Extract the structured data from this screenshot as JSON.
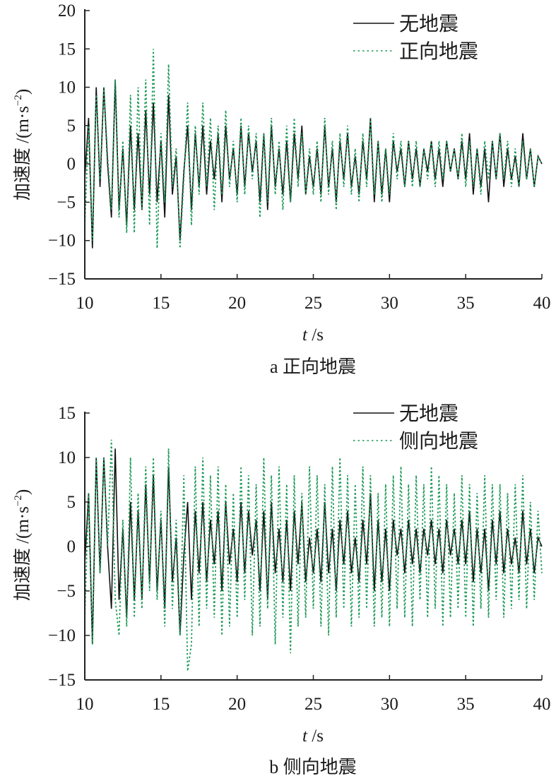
{
  "colors": {
    "none": "#111111",
    "quake": "#1b9a55",
    "axis": "#222222"
  },
  "chart_data": [
    {
      "type": "line",
      "caption": "a 正向地震",
      "xlabel_var": "t",
      "xlabel_unit": " /s",
      "ylabel_main": "加速度 /(m·s",
      "ylabel_exp": "−2",
      "ylabel_close": ")",
      "xlim": [
        10,
        40
      ],
      "ylim": [
        -15,
        20
      ],
      "xticks": [
        10,
        15,
        20,
        25,
        30,
        35,
        40
      ],
      "yticks": [
        20,
        15,
        10,
        5,
        0,
        -5,
        -10,
        -15
      ],
      "ytick_labels": [
        "20",
        "15",
        "10",
        "5",
        "0",
        "−5",
        "−10",
        "−15"
      ],
      "legend_position": "top-right",
      "x_start": 10,
      "x_step": 0.25,
      "series": [
        {
          "name": "无地震",
          "style": "solid",
          "color_key": "none",
          "values": [
            -2,
            6,
            -11,
            10,
            -3,
            10,
            0,
            -7,
            11,
            -6,
            2,
            -8,
            5,
            -6,
            4,
            -6,
            7,
            -4,
            8,
            -5,
            3,
            -7,
            9,
            -4,
            1,
            -10,
            -1,
            5,
            -6,
            4,
            -3,
            5,
            -4,
            3,
            -2,
            4,
            -5,
            5,
            -2,
            2,
            -4,
            5,
            -3,
            4,
            -1,
            3,
            -5,
            4,
            -6,
            5,
            -3,
            2,
            -4,
            3,
            -5,
            4,
            -2,
            5,
            -4,
            1,
            -3,
            2,
            -4,
            5,
            -3,
            2,
            -5,
            3,
            -2,
            4,
            -3,
            1,
            -4,
            3,
            -2,
            6,
            -5,
            3,
            -4,
            2,
            -5,
            3,
            -1,
            2,
            -3,
            3,
            -2,
            2,
            -3,
            2,
            -1,
            3,
            -2,
            2,
            -3,
            3,
            -1,
            2,
            -2,
            3,
            -2,
            4,
            -4,
            2,
            -3,
            2,
            -5,
            3,
            -2,
            4,
            -3,
            2,
            -2,
            1,
            -3,
            4,
            -2,
            2,
            -3,
            1,
            0
          ]
        },
        {
          "name": "正向地震",
          "style": "dotted",
          "color_key": "quake",
          "values": [
            -8,
            5,
            -10,
            9,
            -2,
            10,
            1,
            -6,
            11,
            -7,
            3,
            -9,
            9,
            -9,
            10,
            -6,
            11,
            -8,
            15,
            -11,
            4,
            -5,
            13,
            -3,
            2,
            -11,
            -2,
            8,
            -8,
            5,
            -4,
            8,
            -3,
            6,
            -6,
            5,
            -4,
            7,
            -3,
            3,
            -5,
            6,
            -4,
            5,
            -2,
            4,
            -7,
            4,
            -5,
            6,
            -4,
            3,
            -6,
            5,
            -5,
            6,
            -3,
            4,
            -4,
            2,
            -4,
            3,
            -5,
            6,
            -4,
            3,
            -6,
            4,
            -3,
            5,
            -4,
            2,
            -5,
            4,
            -3,
            6,
            -4,
            3,
            -5,
            2,
            -4,
            4,
            -2,
            3,
            -3,
            3,
            -3,
            3,
            -3,
            2,
            -2,
            3,
            -3,
            3,
            -2,
            3,
            -1,
            2,
            -2,
            4,
            -3,
            3,
            -3,
            2,
            -4,
            3,
            -2,
            3,
            -2,
            4,
            -2,
            3,
            -3,
            2,
            -3,
            3,
            -2,
            2,
            -3,
            1,
            0
          ]
        }
      ]
    },
    {
      "type": "line",
      "caption": "b 侧向地震",
      "xlabel_var": "t",
      "xlabel_unit": " /s",
      "ylabel_main": "加速度 /(m·s",
      "ylabel_exp": "−2",
      "ylabel_close": ")",
      "xlim": [
        10,
        40
      ],
      "ylim": [
        -15,
        15
      ],
      "xticks": [
        10,
        15,
        20,
        25,
        30,
        35,
        40
      ],
      "yticks": [
        15,
        10,
        5,
        0,
        -5,
        -10,
        -15
      ],
      "ytick_labels": [
        "15",
        "10",
        "5",
        "0",
        "−5",
        "−10",
        "−15"
      ],
      "legend_position": "top-right",
      "x_start": 10,
      "x_step": 0.25,
      "series": [
        {
          "name": "无地震",
          "style": "solid",
          "color_key": "none",
          "values": [
            -2,
            6,
            -11,
            10,
            -3,
            10,
            0,
            -7,
            11,
            -6,
            2,
            -8,
            5,
            -6,
            4,
            -6,
            7,
            -4,
            8,
            -5,
            3,
            -7,
            9,
            -4,
            1,
            -10,
            -1,
            5,
            -6,
            4,
            -3,
            5,
            -4,
            3,
            -2,
            4,
            -5,
            5,
            -2,
            2,
            -4,
            5,
            -3,
            4,
            -1,
            3,
            -5,
            4,
            -6,
            5,
            -3,
            2,
            -4,
            3,
            -5,
            4,
            -2,
            5,
            -4,
            1,
            -3,
            2,
            -4,
            5,
            -3,
            2,
            -5,
            3,
            -2,
            4,
            -3,
            1,
            -4,
            3,
            -2,
            6,
            -5,
            3,
            -4,
            2,
            -5,
            3,
            -1,
            2,
            -3,
            3,
            -2,
            2,
            -3,
            2,
            -1,
            3,
            -2,
            2,
            -3,
            3,
            -1,
            2,
            -2,
            3,
            -2,
            4,
            -4,
            2,
            -3,
            2,
            -5,
            3,
            -2,
            4,
            -3,
            2,
            -2,
            1,
            -3,
            4,
            -2,
            2,
            -3,
            1,
            0
          ]
        },
        {
          "name": "侧向地震",
          "style": "dotted",
          "color_key": "quake",
          "values": [
            -8,
            6,
            -11,
            10,
            -3,
            10,
            0,
            12,
            -6,
            -10,
            3,
            -9,
            10,
            -8,
            6,
            -7,
            9,
            -5,
            10,
            -6,
            4,
            -9,
            11,
            -7,
            3,
            -10,
            8,
            -14,
            -11,
            9,
            -9,
            10,
            -7,
            8,
            -8,
            9,
            -10,
            7,
            -9,
            6,
            -8,
            9,
            -6,
            8,
            -10,
            7,
            -9,
            10,
            -7,
            8,
            -11,
            9,
            -8,
            7,
            -12,
            8,
            -9,
            6,
            -8,
            9,
            -7,
            8,
            -9,
            7,
            -10,
            9,
            -8,
            10,
            -7,
            8,
            -9,
            7,
            -8,
            9,
            -7,
            8,
            -9,
            6,
            -8,
            7,
            -9,
            8,
            -7,
            9,
            -8,
            7,
            -9,
            8,
            -6,
            7,
            -8,
            9,
            -7,
            8,
            -9,
            7,
            -8,
            6,
            -7,
            8,
            -8,
            7,
            -9,
            6,
            -7,
            8,
            -8,
            7,
            -6,
            7,
            -8,
            6,
            -7,
            7,
            -6,
            8,
            -7,
            5,
            -6,
            4,
            -3
          ]
        }
      ]
    }
  ]
}
